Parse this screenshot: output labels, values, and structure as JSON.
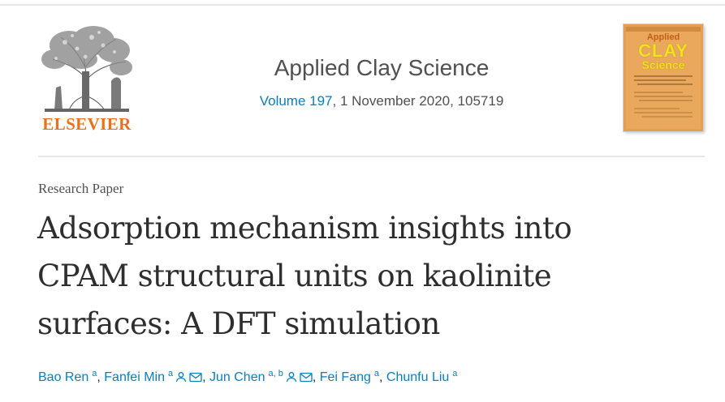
{
  "publisher": {
    "name": "ELSEVIER",
    "logo_icon": "tree-logo-icon",
    "brand_color": "#e9711c"
  },
  "journal": {
    "title": "Applied Clay Science",
    "volume_link": "Volume 197",
    "issue_rest": ", 1 November 2020, 105719",
    "link_color": "#0c7dbb"
  },
  "cover": {
    "line1": "Applied",
    "line2": "CLAY",
    "line3": "Science"
  },
  "article": {
    "type": "Research Paper",
    "title_lines": [
      "Adsorption mechanism insights into",
      "CPAM structural units on kaolinite",
      "surfaces: A DFT simulation"
    ]
  },
  "authors": [
    {
      "name": "Bao Ren",
      "affil": "a",
      "icons": [],
      "sep": ", "
    },
    {
      "name": "Fanfei Min",
      "affil": "a",
      "icons": [
        "person-icon",
        "mail-icon"
      ],
      "sep": ", "
    },
    {
      "name": "Jun Chen",
      "affil": "a, b",
      "icons": [
        "person-icon",
        "mail-icon"
      ],
      "sep": ", "
    },
    {
      "name": "Fei Fang",
      "affil": "a",
      "icons": [],
      "sep": ", "
    },
    {
      "name": "Chunfu Liu",
      "affil": "a",
      "icons": [],
      "sep": ""
    }
  ]
}
